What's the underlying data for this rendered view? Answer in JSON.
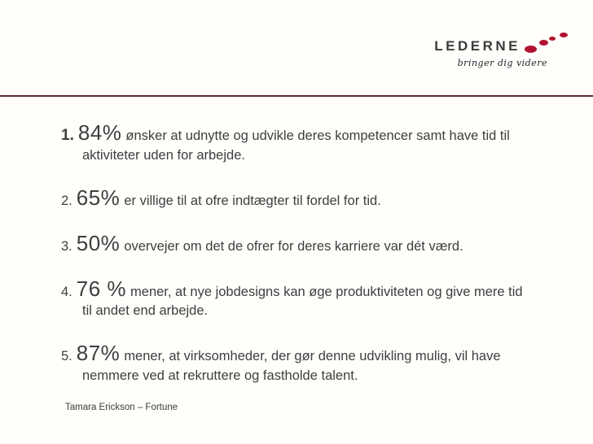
{
  "slide": {
    "logo": {
      "brand": "LEDERNE",
      "tagline": "bringer dig videre"
    },
    "items": [
      {
        "num": "1.",
        "stat": "84%",
        "text": "ønsker at udnytte og udvikle deres kompetencer samt have tid til aktiviteter uden for arbejde."
      },
      {
        "num": "2.",
        "stat": "65%",
        "text": "er villige til at ofre indtægter til fordel for tid."
      },
      {
        "num": "3.",
        "stat": "50%",
        "text": "overvejer om det de ofrer for deres karriere var dét værd."
      },
      {
        "num": "4.",
        "stat": "76 %",
        "text": "mener, at nye jobdesigns kan øge produktiviteten og give mere tid til andet end arbejde."
      },
      {
        "num": "5.",
        "stat": "87%",
        "text": "mener, at virksomheder, der gør denne udvikling mulig, vil have nemmere ved at rekruttere og fastholde talent."
      }
    ],
    "footer": "Tamara Erickson – Fortune",
    "colors": {
      "divider": "#5f2b38",
      "dot_red": "#b01230",
      "brand_text": "#3b3b3d",
      "body_text": "#3e3e40"
    }
  }
}
